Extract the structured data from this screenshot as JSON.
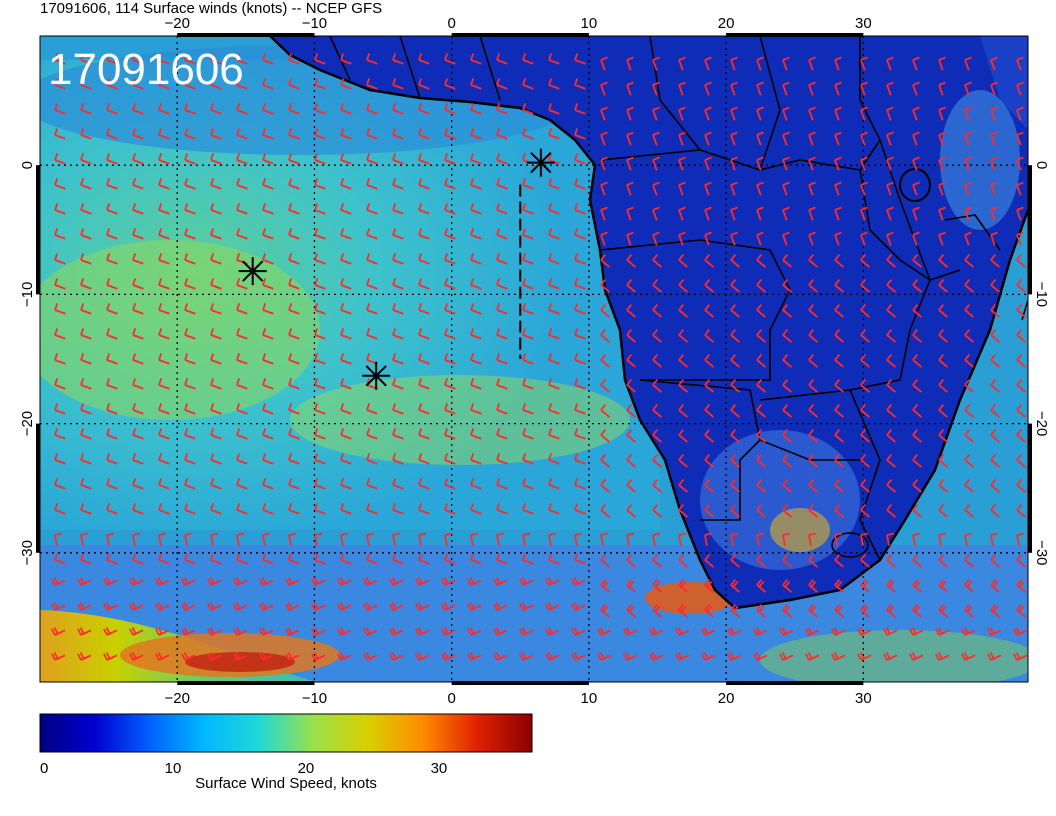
{
  "title": "17091606, 114 Surface winds (knots) -- NCEP GFS",
  "timestamp_overlay": "17091606",
  "map": {
    "lon_range": [
      -30,
      42
    ],
    "lat_range": [
      -40,
      10
    ],
    "lon_ticks": [
      {
        "value": -20,
        "label": "−20"
      },
      {
        "value": -10,
        "label": "−10"
      },
      {
        "value": 0,
        "label": "0"
      },
      {
        "value": 10,
        "label": "10"
      },
      {
        "value": 20,
        "label": "20"
      },
      {
        "value": 30,
        "label": "30"
      }
    ],
    "lat_ticks": [
      {
        "value": 0,
        "label": "0"
      },
      {
        "value": -10,
        "label": "−10"
      },
      {
        "value": -20,
        "label": "−20"
      },
      {
        "value": -30,
        "label": "−30"
      }
    ],
    "markers": [
      {
        "name": "marker-1",
        "lon": -14.5,
        "lat": -8.2
      },
      {
        "name": "marker-2",
        "lon": -5.5,
        "lat": -16.3
      },
      {
        "name": "marker-3",
        "lon": 6.5,
        "lat": 0.2
      }
    ],
    "track_line": {
      "lon": 5,
      "lat_from": -1.5,
      "lat_to": -15
    },
    "colors": {
      "barb": "#ff2a2a",
      "coast": "#000000",
      "grid": "#000000"
    }
  },
  "colorbar": {
    "min": 0,
    "max": 37,
    "ticks": [
      {
        "value": 0,
        "label": "0"
      },
      {
        "value": 10,
        "label": "10"
      },
      {
        "value": 20,
        "label": "20"
      },
      {
        "value": 30,
        "label": "30"
      }
    ],
    "label": "Surface Wind Speed, knots",
    "stops": [
      "#00007f",
      "#0000d0",
      "#0060ff",
      "#00b8ff",
      "#20d8d8",
      "#9ae04a",
      "#d8d000",
      "#ff8c00",
      "#e02000",
      "#8b0000"
    ]
  }
}
